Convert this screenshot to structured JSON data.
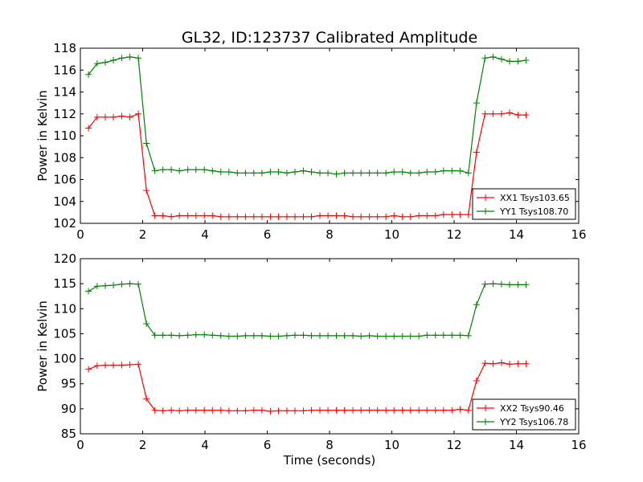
{
  "title": "GL32, ID:123737 Calibrated Amplitude",
  "chart_data": [
    {
      "type": "line",
      "title": "GL32, ID:123737 Calibrated Amplitude",
      "xlabel": "",
      "ylabel": "Power in Kelvin",
      "xlim": [
        0,
        16
      ],
      "ylim": [
        102,
        118
      ],
      "xticks": [
        "0",
        "2",
        "4",
        "6",
        "8",
        "10",
        "12",
        "14",
        "16"
      ],
      "yticks": [
        "102",
        "104",
        "106",
        "108",
        "110",
        "112",
        "114",
        "116",
        "118"
      ],
      "grid": false,
      "legend_position": "lower-right",
      "x": [
        0.26,
        0.54,
        0.8,
        1.06,
        1.33,
        1.59,
        1.86,
        2.12,
        2.39,
        2.65,
        2.92,
        3.18,
        3.45,
        3.71,
        3.98,
        4.24,
        4.51,
        4.77,
        5.04,
        5.3,
        5.57,
        5.83,
        6.1,
        6.36,
        6.63,
        6.89,
        7.16,
        7.42,
        7.69,
        7.95,
        8.22,
        8.48,
        8.75,
        9.01,
        9.28,
        9.54,
        9.81,
        10.07,
        10.34,
        10.6,
        10.87,
        11.13,
        11.4,
        11.66,
        11.93,
        12.19,
        12.46,
        12.72,
        12.99,
        13.25,
        13.52,
        13.78,
        14.05,
        14.31
      ],
      "series": [
        {
          "name": "XX1 Tsys103.65",
          "color": "#ff0000",
          "values": [
            110.7,
            111.7,
            111.7,
            111.7,
            111.8,
            111.7,
            112.0,
            105.0,
            102.7,
            102.7,
            102.6,
            102.7,
            102.7,
            102.7,
            102.7,
            102.7,
            102.6,
            102.6,
            102.6,
            102.6,
            102.6,
            102.6,
            102.6,
            102.6,
            102.6,
            102.6,
            102.6,
            102.6,
            102.7,
            102.7,
            102.7,
            102.7,
            102.6,
            102.6,
            102.6,
            102.6,
            102.6,
            102.7,
            102.6,
            102.6,
            102.7,
            102.7,
            102.7,
            102.8,
            102.8,
            102.8,
            102.8,
            108.5,
            112.0,
            112.0,
            112.0,
            112.1,
            111.9,
            111.9
          ]
        },
        {
          "name": "YY1 Tsys108.70",
          "color": "#008000",
          "values": [
            115.6,
            116.6,
            116.7,
            116.9,
            117.1,
            117.2,
            117.1,
            109.3,
            106.8,
            106.9,
            106.9,
            106.8,
            106.9,
            106.9,
            106.9,
            106.8,
            106.7,
            106.7,
            106.6,
            106.6,
            106.6,
            106.6,
            106.7,
            106.7,
            106.6,
            106.7,
            106.8,
            106.7,
            106.6,
            106.6,
            106.5,
            106.6,
            106.6,
            106.6,
            106.6,
            106.6,
            106.6,
            106.7,
            106.7,
            106.6,
            106.6,
            106.7,
            106.7,
            106.8,
            106.8,
            106.8,
            106.6,
            113.0,
            117.1,
            117.2,
            117.0,
            116.8,
            116.8,
            116.9
          ]
        }
      ]
    },
    {
      "type": "line",
      "title": "",
      "xlabel": "Time (seconds)",
      "ylabel": "Power in Kelvin",
      "xlim": [
        0,
        16
      ],
      "ylim": [
        85,
        120
      ],
      "xticks": [
        "0",
        "2",
        "4",
        "6",
        "8",
        "10",
        "12",
        "14",
        "16"
      ],
      "yticks": [
        "85",
        "90",
        "95",
        "100",
        "105",
        "110",
        "115",
        "120"
      ],
      "grid": false,
      "legend_position": "lower-right",
      "x": [
        0.26,
        0.54,
        0.8,
        1.06,
        1.33,
        1.59,
        1.86,
        2.12,
        2.39,
        2.65,
        2.92,
        3.18,
        3.45,
        3.71,
        3.98,
        4.24,
        4.51,
        4.77,
        5.04,
        5.3,
        5.57,
        5.83,
        6.1,
        6.36,
        6.63,
        6.89,
        7.16,
        7.42,
        7.69,
        7.95,
        8.22,
        8.48,
        8.75,
        9.01,
        9.28,
        9.54,
        9.81,
        10.07,
        10.34,
        10.6,
        10.87,
        11.13,
        11.4,
        11.66,
        11.93,
        12.19,
        12.46,
        12.72,
        12.99,
        13.25,
        13.52,
        13.78,
        14.05,
        14.31
      ],
      "series": [
        {
          "name": "XX2 Tsys90.46",
          "color": "#ff0000",
          "values": [
            97.9,
            98.6,
            98.7,
            98.7,
            98.7,
            98.8,
            98.9,
            92.0,
            89.7,
            89.6,
            89.7,
            89.6,
            89.7,
            89.7,
            89.7,
            89.7,
            89.7,
            89.6,
            89.6,
            89.6,
            89.7,
            89.7,
            89.5,
            89.6,
            89.6,
            89.6,
            89.6,
            89.7,
            89.7,
            89.7,
            89.7,
            89.7,
            89.7,
            89.7,
            89.7,
            89.7,
            89.7,
            89.7,
            89.7,
            89.7,
            89.7,
            89.7,
            89.7,
            89.7,
            89.7,
            89.9,
            89.7,
            95.6,
            99.1,
            99.0,
            99.2,
            98.9,
            99.0,
            99.0
          ]
        },
        {
          "name": "YY2 Tsys106.78",
          "color": "#008000",
          "values": [
            113.5,
            114.5,
            114.6,
            114.7,
            114.9,
            115.0,
            114.9,
            107.0,
            104.7,
            104.7,
            104.7,
            104.6,
            104.7,
            104.8,
            104.8,
            104.7,
            104.6,
            104.5,
            104.5,
            104.6,
            104.6,
            104.6,
            104.5,
            104.5,
            104.6,
            104.7,
            104.7,
            104.6,
            104.6,
            104.6,
            104.6,
            104.6,
            104.6,
            104.5,
            104.6,
            104.5,
            104.5,
            104.5,
            104.5,
            104.5,
            104.5,
            104.7,
            104.7,
            104.7,
            104.7,
            104.7,
            104.6,
            110.8,
            114.9,
            115.0,
            114.9,
            114.8,
            114.8,
            114.8
          ]
        }
      ]
    }
  ]
}
